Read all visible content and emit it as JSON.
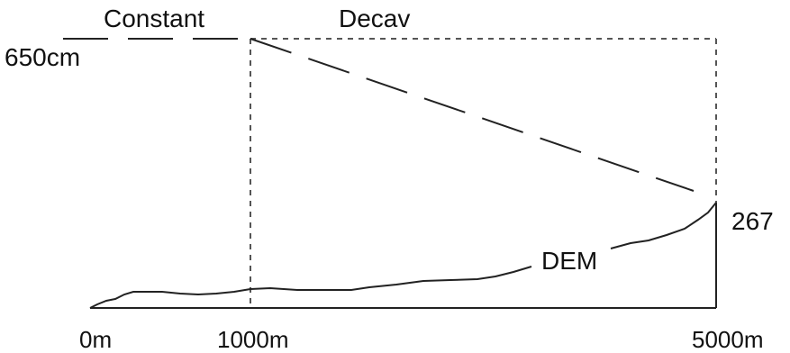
{
  "diagram": {
    "labels": {
      "constant": "Constant",
      "decay": "Decav",
      "top_value": "650cm",
      "end_value": "267",
      "dem": "DEM",
      "x_start": "0m",
      "x_mid": "1000m",
      "x_end": "5000m"
    },
    "colors": {
      "line": "#222222",
      "dashed_box": "#555555",
      "background": "#ffffff"
    }
  }
}
